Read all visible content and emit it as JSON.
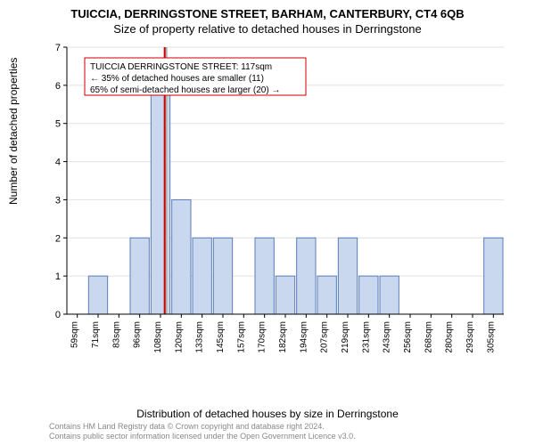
{
  "title_main": "TUICCIA, DERRINGSTONE STREET, BARHAM, CANTERBURY, CT4 6QB",
  "title_sub": "Size of property relative to detached houses in Derringstone",
  "y_axis_label": "Number of detached properties",
  "x_axis_label": "Distribution of detached houses by size in Derringstone",
  "footer_line1": "Contains HM Land Registry data © Crown copyright and database right 2024.",
  "footer_line2": "Contains public sector information licensed under the Open Government Licence v3.0.",
  "chart": {
    "type": "histogram",
    "ylim": [
      0,
      7
    ],
    "ytick_step": 1,
    "x_categories": [
      "59sqm",
      "71sqm",
      "83sqm",
      "96sqm",
      "108sqm",
      "120sqm",
      "133sqm",
      "145sqm",
      "157sqm",
      "170sqm",
      "182sqm",
      "194sqm",
      "207sqm",
      "219sqm",
      "231sqm",
      "243sqm",
      "256sqm",
      "268sqm",
      "280sqm",
      "293sqm",
      "305sqm"
    ],
    "bar_values": [
      0,
      1,
      0,
      2,
      6,
      3,
      2,
      2,
      0,
      2,
      1,
      2,
      1,
      2,
      1,
      1,
      0,
      0,
      0,
      0,
      2
    ],
    "bar_fill": "#c9d8ef",
    "bar_stroke": "#5b7cb8",
    "background_color": "#ffffff",
    "grid_color": "#e0e0e0",
    "axis_color": "#000000",
    "marker_x_index": 4.7,
    "marker_color": "#cc0000",
    "marker_shadow": "#b0b0b0",
    "annotation": {
      "line1": "TUICCIA DERRINGSTONE STREET: 117sqm",
      "line2": "← 35% of detached houses are smaller (11)",
      "line3": "65% of semi-detached houses are larger (20) →",
      "box_stroke": "#cc0000",
      "text_color": "#000000",
      "fontsize": 10
    },
    "label_fontsize": 12,
    "tick_fontsize_x": 10,
    "tick_fontsize_y": 11
  }
}
